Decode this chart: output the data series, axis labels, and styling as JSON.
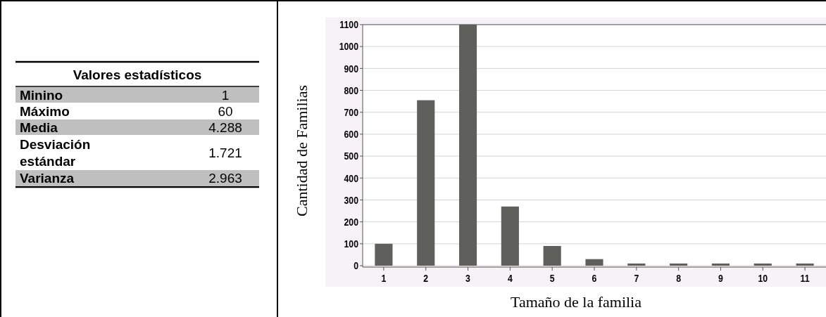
{
  "chart_data": [
    {
      "type": "other",
      "title": "Valores estadísticos",
      "annotations": [
        "Minino",
        "1",
        "Máximo",
        "60",
        "Media",
        "4.288",
        "Desviación estándar",
        "1.721",
        "Varianza",
        "2.963"
      ]
    },
    {
      "type": "bar",
      "categories": [
        "1",
        "2",
        "3",
        "4",
        "5",
        "6",
        "7",
        "8",
        "9",
        "10",
        "11"
      ],
      "values": [
        100,
        755,
        1100,
        270,
        90,
        30,
        10,
        10,
        10,
        10,
        10
      ],
      "color": "#5f605c",
      "ylim": [
        0,
        1100
      ],
      "yticks": [
        0,
        100,
        200,
        300,
        400,
        500,
        600,
        700,
        800,
        900,
        1000,
        1100
      ],
      "grid": "y",
      "xlabel": "Tamaño de la familia",
      "ylabel": "Cantidad de Familias"
    }
  ]
}
